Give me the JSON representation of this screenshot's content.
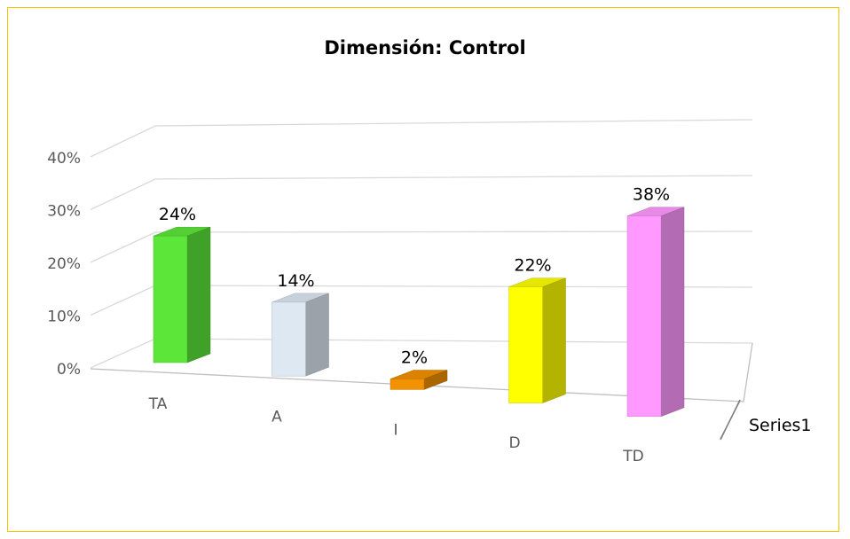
{
  "chart_data": {
    "type": "bar",
    "title": "Dimensión: Control",
    "categories": [
      "TA",
      "A",
      "I",
      "D",
      "TD"
    ],
    "series": [
      {
        "name": "Series1",
        "values": [
          0.24,
          0.14,
          0.02,
          0.22,
          0.38
        ]
      }
    ],
    "data_labels": [
      "24%",
      "14%",
      "2%",
      "22%",
      "38%"
    ],
    "y_ticks": [
      "0%",
      "10%",
      "20%",
      "30%",
      "40%"
    ],
    "ylim": [
      0,
      0.4
    ],
    "grid": true,
    "legend": "right",
    "three_d": true,
    "colors": [
      "#5ce63a",
      "#dde8f3",
      "#f39200",
      "#ffff00",
      "#ff99ff"
    ]
  }
}
